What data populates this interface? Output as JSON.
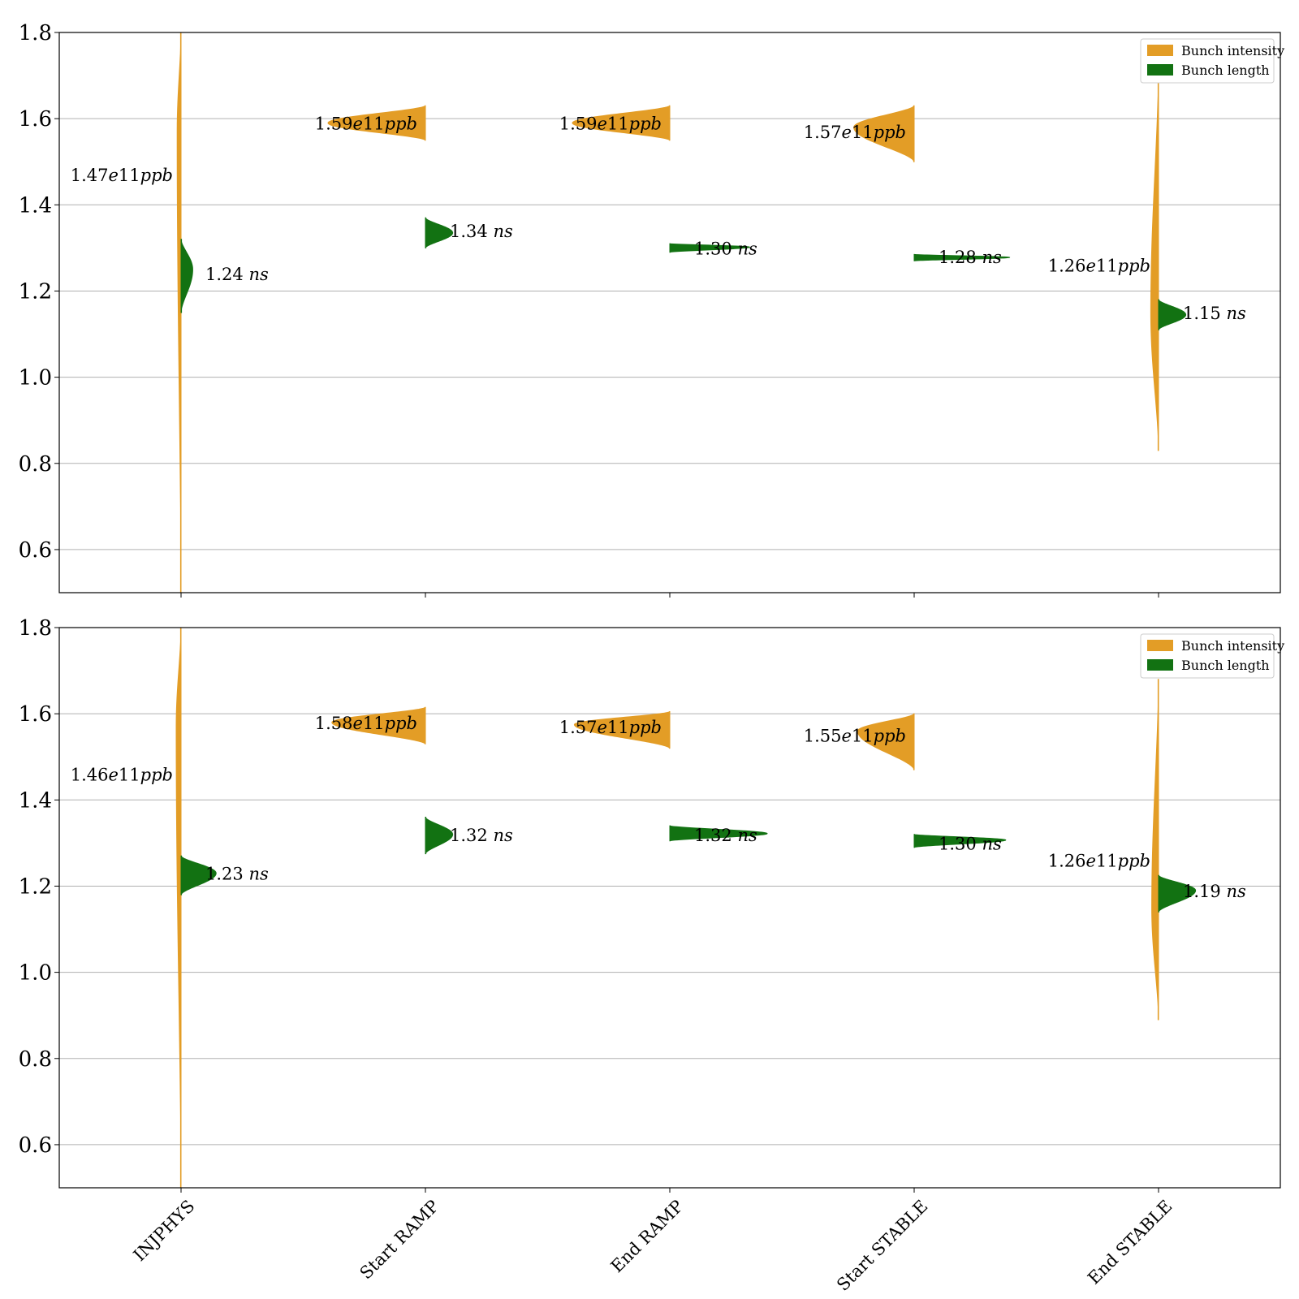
{
  "colors": {
    "intensity": "#e39d26",
    "length": "#127212",
    "grid": "#b0b0b0",
    "axis": "#000000"
  },
  "chart_data": [
    {
      "type": "violin",
      "x_categories": [
        "INJPHYS",
        "Start RAMP",
        "End RAMP",
        "Start STABLE",
        "End STABLE"
      ],
      "ylim": [
        0.5,
        1.8
      ],
      "yticks": [
        "0.6",
        "0.8",
        "1.0",
        "1.2",
        "1.4",
        "1.6",
        "1.8"
      ],
      "grid": "y",
      "legend": {
        "placement": "top-right",
        "entries": [
          "Bunch intensity",
          "Bunch length"
        ]
      },
      "series": [
        {
          "name": "Bunch intensity",
          "side": "left",
          "violins": [
            {
              "ymin": 0.5,
              "ymax": 1.8,
              "mode": 1.57,
              "width": 0.04,
              "median": 1.47,
              "label": "1.47e11ppb"
            },
            {
              "ymin": 1.55,
              "ymax": 1.63,
              "mode": 1.59,
              "width": 1.0,
              "median": 1.59,
              "label": "1.59e11ppb"
            },
            {
              "ymin": 1.55,
              "ymax": 1.63,
              "mode": 1.59,
              "width": 1.0,
              "median": 1.59,
              "label": "1.59e11ppb"
            },
            {
              "ymin": 1.5,
              "ymax": 1.63,
              "mode": 1.58,
              "width": 0.62,
              "median": 1.57,
              "label": "1.57e11ppb"
            },
            {
              "ymin": 0.83,
              "ymax": 1.72,
              "mode": 1.15,
              "width": 0.08,
              "median": 1.26,
              "label": "1.26e11ppb"
            }
          ]
        },
        {
          "name": "Bunch length",
          "side": "right",
          "violins": [
            {
              "ymin": 1.15,
              "ymax": 1.32,
              "mode": 1.25,
              "width": 0.12,
              "median": 1.24,
              "label": "1.24 ns"
            },
            {
              "ymin": 1.3,
              "ymax": 1.37,
              "mode": 1.335,
              "width": 0.28,
              "median": 1.34,
              "label": "1.34 ns"
            },
            {
              "ymin": 1.29,
              "ymax": 1.31,
              "mode": 1.302,
              "width": 0.82,
              "median": 1.3,
              "label": "1.30 ns"
            },
            {
              "ymin": 1.27,
              "ymax": 1.285,
              "mode": 1.278,
              "width": 0.98,
              "median": 1.28,
              "label": "1.28 ns"
            },
            {
              "ymin": 1.11,
              "ymax": 1.18,
              "mode": 1.145,
              "width": 0.28,
              "median": 1.15,
              "label": "1.15 ns"
            }
          ]
        }
      ]
    },
    {
      "type": "violin",
      "x_categories": [
        "INJPHYS",
        "Start RAMP",
        "End RAMP",
        "Start STABLE",
        "End STABLE"
      ],
      "ylim": [
        0.5,
        1.8
      ],
      "yticks": [
        "0.6",
        "0.8",
        "1.0",
        "1.2",
        "1.4",
        "1.6",
        "1.8"
      ],
      "grid": "y",
      "legend": {
        "placement": "top-right",
        "entries": [
          "Bunch intensity",
          "Bunch length"
        ]
      },
      "series": [
        {
          "name": "Bunch intensity",
          "side": "left",
          "violins": [
            {
              "ymin": 0.5,
              "ymax": 1.8,
              "mode": 1.57,
              "width": 0.05,
              "median": 1.46,
              "label": "1.46e11ppb"
            },
            {
              "ymin": 1.53,
              "ymax": 1.615,
              "mode": 1.58,
              "width": 0.96,
              "median": 1.58,
              "label": "1.58e11ppb"
            },
            {
              "ymin": 1.52,
              "ymax": 1.605,
              "mode": 1.575,
              "width": 0.98,
              "median": 1.57,
              "label": "1.57e11ppb"
            },
            {
              "ymin": 1.47,
              "ymax": 1.6,
              "mode": 1.56,
              "width": 0.58,
              "median": 1.55,
              "label": "1.55e11ppb"
            },
            {
              "ymin": 0.89,
              "ymax": 1.68,
              "mode": 1.15,
              "width": 0.07,
              "median": 1.26,
              "label": "1.26e11ppb"
            }
          ]
        },
        {
          "name": "Bunch length",
          "side": "right",
          "violins": [
            {
              "ymin": 1.18,
              "ymax": 1.27,
              "mode": 1.23,
              "width": 0.36,
              "median": 1.23,
              "label": "1.23 ns"
            },
            {
              "ymin": 1.275,
              "ymax": 1.36,
              "mode": 1.32,
              "width": 0.28,
              "median": 1.32,
              "label": "1.32 ns"
            },
            {
              "ymin": 1.305,
              "ymax": 1.34,
              "mode": 1.322,
              "width": 1.0,
              "median": 1.32,
              "label": "1.32 ns"
            },
            {
              "ymin": 1.29,
              "ymax": 1.32,
              "mode": 1.307,
              "width": 0.94,
              "median": 1.3,
              "label": "1.30 ns"
            },
            {
              "ymin": 1.14,
              "ymax": 1.225,
              "mode": 1.19,
              "width": 0.38,
              "median": 1.19,
              "label": "1.19 ns"
            }
          ]
        }
      ]
    }
  ]
}
